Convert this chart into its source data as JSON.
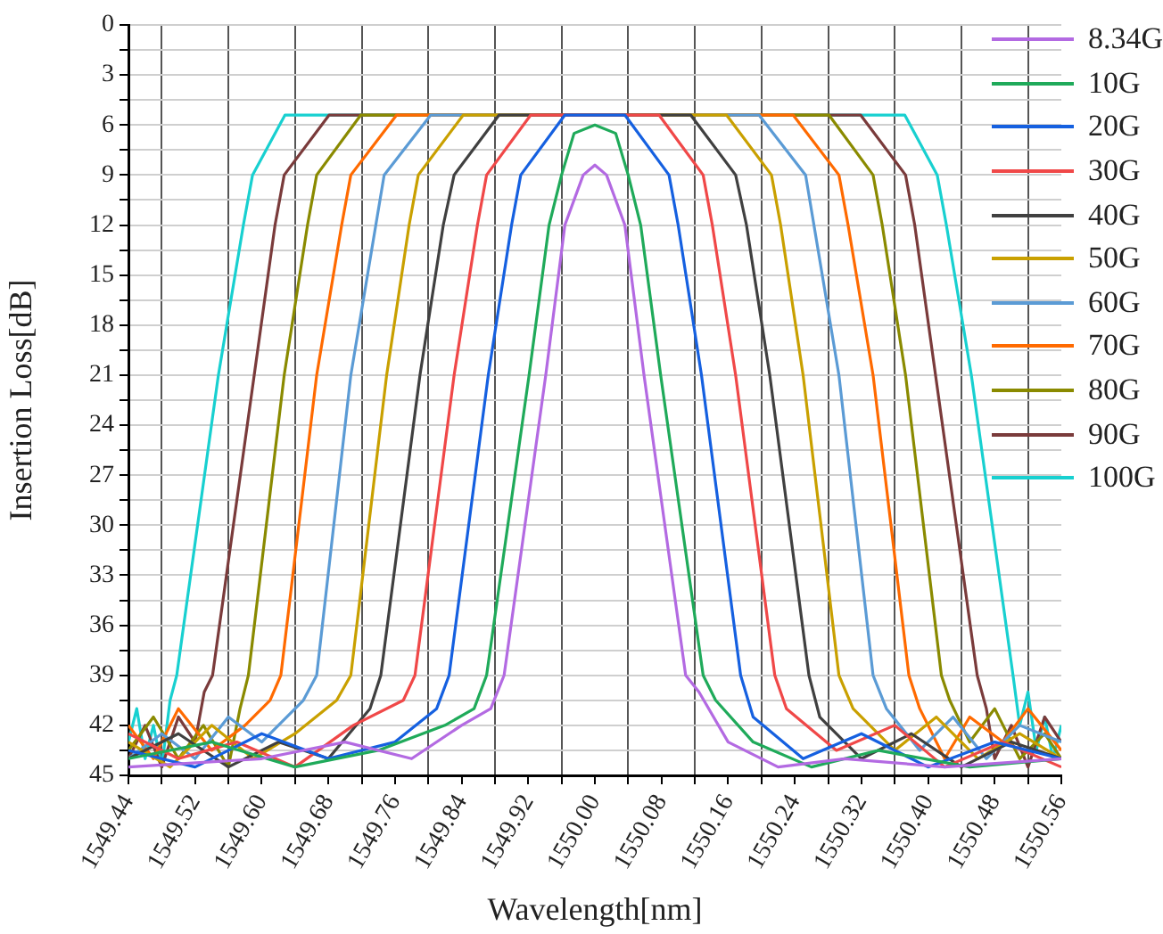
{
  "chart_data": {
    "type": "line",
    "xlabel": "Wavelength[nm]",
    "ylabel": "Insertion Loss[dB]",
    "xlim": [
      1549.44,
      1550.56
    ],
    "xticks": [
      1549.44,
      {
        "value": 1549.48,
        "label": null
      },
      1549.52,
      {
        "value": 1549.56,
        "label": null
      },
      {
        "value": 1549.6,
        "label": "1549.60"
      },
      {
        "value": 1549.64,
        "label": null
      },
      1549.68,
      {
        "value": 1549.72,
        "label": null
      },
      1549.76,
      {
        "value": 1549.8,
        "label": null
      },
      1549.84,
      {
        "value": 1549.88,
        "label": null
      },
      1549.92,
      {
        "value": 1549.96,
        "label": null
      },
      {
        "value": 1550.0,
        "label": "1550.00"
      },
      {
        "value": 1550.04,
        "label": null
      },
      1550.08,
      {
        "value": 1550.12,
        "label": null
      },
      1550.16,
      {
        "value": 1550.2,
        "label": null
      },
      1550.24,
      {
        "value": 1550.28,
        "label": null
      },
      1550.32,
      {
        "value": 1550.36,
        "label": null
      },
      {
        "value": 1550.4,
        "label": "1550.40"
      },
      {
        "value": 1550.44,
        "label": null
      },
      1550.48,
      {
        "value": 1550.52,
        "label": null
      },
      1550.56
    ],
    "ylim": [
      45,
      0
    ],
    "yticks": [
      0,
      {
        "value": 1.5,
        "label": null
      },
      3,
      {
        "value": 4.5,
        "label": null
      },
      6,
      {
        "value": 7.5,
        "label": null
      },
      9,
      {
        "value": 10.5,
        "label": null
      },
      12,
      {
        "value": 13.5,
        "label": null
      },
      15,
      {
        "value": 16.5,
        "label": null
      },
      18,
      {
        "value": 19.5,
        "label": null
      },
      21,
      {
        "value": 22.5,
        "label": null
      },
      24,
      {
        "value": 25.5,
        "label": null
      },
      27,
      {
        "value": 28.5,
        "label": null
      },
      30,
      {
        "value": 31.5,
        "label": null
      },
      33,
      {
        "value": 34.5,
        "label": null
      },
      36,
      {
        "value": 37.5,
        "label": null
      },
      39,
      {
        "value": 40.5,
        "label": null
      },
      42,
      {
        "value": 43.5,
        "label": null
      },
      45
    ],
    "grid": true,
    "legend": "top right",
    "marker": "none",
    "line_style": "solid",
    "series": [
      {
        "name": "8.34G",
        "color": "#b36ae2",
        "x": [
          1549.44,
          1549.6,
          1549.7,
          1549.78,
          1549.84,
          1549.875,
          1549.891,
          1549.941,
          1549.964,
          1549.986,
          1550.0,
          1550.014,
          1550.036,
          1550.059,
          1550.109,
          1550.125,
          1550.16,
          1550.22,
          1550.3,
          1550.42,
          1550.56
        ],
        "values": [
          44.5,
          44,
          43,
          44,
          42,
          41,
          39,
          21,
          12,
          9,
          8.4,
          9,
          12,
          21,
          39,
          40,
          43,
          44.5,
          44,
          44.5,
          44
        ]
      },
      {
        "name": "10G",
        "color": "#1faa5a",
        "x": [
          1549.44,
          1549.54,
          1549.64,
          1549.74,
          1549.82,
          1549.855,
          1549.87,
          1549.921,
          1549.945,
          1549.96,
          1549.975,
          1550.0,
          1550.025,
          1550.04,
          1550.055,
          1550.079,
          1550.13,
          1550.145,
          1550.19,
          1550.26,
          1550.34,
          1550.45,
          1550.56
        ],
        "values": [
          44,
          43,
          44.5,
          43.5,
          42,
          41,
          39,
          21,
          12,
          9,
          6.5,
          6,
          6.5,
          9,
          12,
          21,
          39,
          40.5,
          43,
          44.5,
          43.5,
          44.5,
          44
        ]
      },
      {
        "name": "20G",
        "color": "#1560e0",
        "x": [
          1549.44,
          1549.52,
          1549.6,
          1549.68,
          1549.76,
          1549.81,
          1549.825,
          1549.872,
          1549.9,
          1549.911,
          1549.964,
          1550.036,
          1550.089,
          1550.1,
          1550.128,
          1550.175,
          1550.19,
          1550.25,
          1550.32,
          1550.4,
          1550.48,
          1550.56
        ],
        "values": [
          43.5,
          44.5,
          42.5,
          44,
          43,
          41,
          39,
          21,
          12,
          9,
          5.4,
          5.4,
          9,
          12,
          21,
          39,
          41.5,
          44,
          42.5,
          44.5,
          43,
          44
        ]
      },
      {
        "name": "30G",
        "color": "#f04848",
        "x": [
          1549.44,
          1549.5,
          1549.57,
          1549.64,
          1549.71,
          1549.77,
          1549.784,
          1549.831,
          1549.859,
          1549.87,
          1549.923,
          1550.077,
          1550.13,
          1550.141,
          1550.169,
          1550.216,
          1550.23,
          1550.29,
          1550.36,
          1550.42,
          1550.49,
          1550.56
        ],
        "values": [
          42.5,
          44,
          43,
          44.5,
          42,
          40.5,
          39,
          21,
          12,
          9,
          5.4,
          5.4,
          9,
          12,
          21,
          39,
          41,
          43.5,
          42,
          44.5,
          43,
          44.5
        ]
      },
      {
        "name": "40G",
        "color": "#404040",
        "x": [
          1549.44,
          1549.5,
          1549.56,
          1549.62,
          1549.68,
          1549.73,
          1549.743,
          1549.79,
          1549.818,
          1549.831,
          1549.885,
          1550.115,
          1550.169,
          1550.182,
          1550.21,
          1550.257,
          1550.27,
          1550.32,
          1550.38,
          1550.44,
          1550.5,
          1550.56
        ],
        "values": [
          44,
          42.5,
          44.5,
          43,
          44,
          41,
          39,
          21,
          12,
          9,
          5.4,
          5.4,
          9,
          12,
          21,
          39,
          41.5,
          44,
          42.5,
          44.5,
          43,
          44
        ]
      },
      {
        "name": "50G",
        "color": "#c9a000",
        "x": [
          1549.44,
          1549.49,
          1549.54,
          1549.59,
          1549.64,
          1549.69,
          1549.707,
          1549.75,
          1549.777,
          1549.788,
          1549.842,
          1550.158,
          1550.212,
          1550.223,
          1550.25,
          1550.293,
          1550.31,
          1550.36,
          1550.41,
          1550.46,
          1550.51,
          1550.56
        ],
        "values": [
          43,
          44.5,
          42,
          44,
          42.5,
          40.5,
          39,
          21,
          12,
          9,
          5.4,
          5.4,
          9,
          12,
          21,
          39,
          41,
          43.5,
          41.5,
          44,
          42.5,
          44
        ]
      },
      {
        "name": "60G",
        "color": "#5b9bd5",
        "x": [
          1549.44,
          1549.48,
          1549.52,
          1549.56,
          1549.6,
          1549.65,
          1549.666,
          1549.707,
          1549.737,
          1549.747,
          1549.803,
          1550.197,
          1550.253,
          1550.263,
          1550.293,
          1550.334,
          1550.35,
          1550.39,
          1550.43,
          1550.47,
          1550.51,
          1550.56
        ],
        "values": [
          44,
          42.5,
          44,
          41.5,
          43,
          40.5,
          39,
          21,
          12,
          9,
          5.4,
          5.4,
          9,
          12,
          21,
          39,
          41,
          43.5,
          41.5,
          44,
          42,
          43
        ]
      },
      {
        "name": "70G",
        "color": "#ff6a00",
        "x": [
          1549.44,
          1549.47,
          1549.5,
          1549.54,
          1549.58,
          1549.61,
          1549.623,
          1549.666,
          1549.696,
          1549.707,
          1549.762,
          1550.238,
          1550.293,
          1550.304,
          1550.334,
          1550.377,
          1550.39,
          1550.42,
          1550.45,
          1550.49,
          1550.52,
          1550.56
        ],
        "values": [
          42,
          44,
          41,
          43.5,
          42,
          40.5,
          39,
          21,
          12,
          9,
          5.4,
          5.4,
          9,
          12,
          21,
          39,
          41,
          44,
          41.5,
          43,
          41,
          43.5
        ]
      },
      {
        "name": "80G",
        "color": "#8a8a00",
        "x": [
          1549.44,
          1549.47,
          1549.5,
          1549.53,
          1549.56,
          1549.574,
          1549.584,
          1549.627,
          1549.655,
          1549.666,
          1549.719,
          1550.281,
          1550.334,
          1550.345,
          1550.373,
          1550.416,
          1550.426,
          1550.45,
          1550.48,
          1550.51,
          1550.54,
          1550.56
        ],
        "values": [
          43.5,
          41.5,
          44,
          42,
          44.5,
          41,
          39,
          21,
          12,
          9,
          5.4,
          5.4,
          9,
          12,
          21,
          39,
          40.5,
          43,
          41,
          44,
          42.5,
          44
        ]
      },
      {
        "name": "90G",
        "color": "#7a3b3b",
        "x": [
          1549.44,
          1549.46,
          1549.48,
          1549.5,
          1549.52,
          1549.531,
          1549.541,
          1549.591,
          1549.616,
          1549.627,
          1549.681,
          1550.319,
          1550.373,
          1550.384,
          1550.409,
          1550.459,
          1550.47,
          1550.48,
          1550.5,
          1550.52,
          1550.54,
          1550.56
        ],
        "values": [
          44,
          42,
          44.5,
          41.5,
          43,
          40,
          39,
          21,
          12,
          9,
          5.4,
          5.4,
          9,
          12,
          21,
          39,
          41,
          44,
          42,
          44.5,
          41.5,
          43
        ]
      },
      {
        "name": "100G",
        "color": "#18d0d0",
        "x": [
          1549.44,
          1549.45,
          1549.46,
          1549.47,
          1549.48,
          1549.49,
          1549.498,
          1549.548,
          1549.578,
          1549.589,
          1549.628,
          1550.372,
          1550.411,
          1550.422,
          1550.452,
          1550.502,
          1550.51,
          1550.52,
          1550.53,
          1550.54,
          1550.55,
          1550.56
        ],
        "values": [
          43,
          41,
          44,
          42,
          44.5,
          40.5,
          39,
          21,
          12,
          9,
          5.4,
          5.4,
          9,
          12,
          21,
          39,
          42,
          40,
          43.5,
          41.5,
          44,
          42
        ]
      }
    ]
  }
}
